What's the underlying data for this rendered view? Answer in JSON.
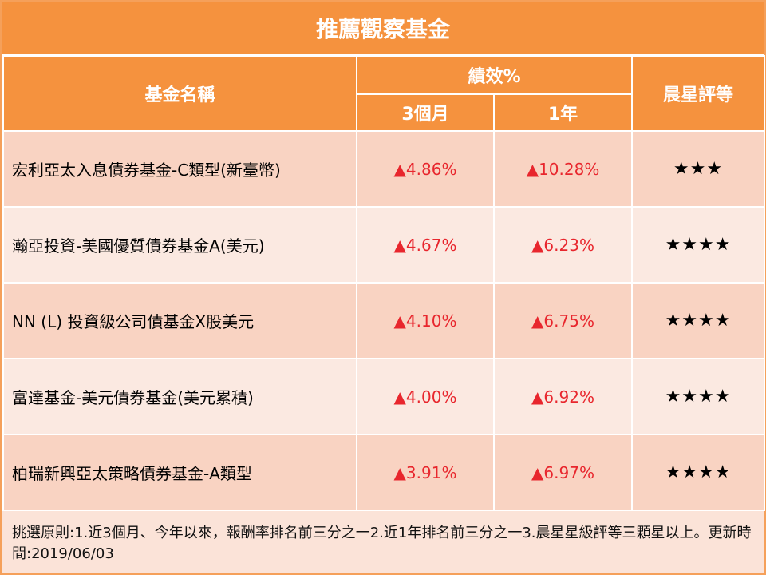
{
  "title": "推薦觀察基金",
  "headers": {
    "fund_name": "基金名稱",
    "performance": "績效%",
    "period_3m": "3個月",
    "period_1y": "1年",
    "rating": "晨星評等"
  },
  "funds": [
    {
      "name": "宏利亞太入息債券基金-C類型(新臺幣)",
      "r3m": "▲4.86%",
      "r1y": "▲10.28%",
      "stars": "★★★"
    },
    {
      "name": "瀚亞投資-美國優質債券基金A(美元)",
      "r3m": "▲4.67%",
      "r1y": "▲6.23%",
      "stars": "★★★★"
    },
    {
      "name": "NN (L) 投資級公司債基金X股美元",
      "r3m": "▲4.10%",
      "r1y": "▲6.75%",
      "stars": "★★★★"
    },
    {
      "name": "富達基金-美元債券基金(美元累積)",
      "r3m": "▲4.00%",
      "r1y": "▲6.92%",
      "stars": "★★★★"
    },
    {
      "name": "柏瑞新興亞太策略債券基金-A類型",
      "r3m": "▲3.91%",
      "r1y": "▲6.97%",
      "stars": "★★★★"
    }
  ],
  "footnote": "挑選原則:1.近3個月、今年以來，報酬率排名前三分之一2.近1年排名前三分之一3.晨星星級評等三顆星以上。更新時間:2019/06/03",
  "colors": {
    "header": "#f5923e",
    "row_dark": "#f9d3c2",
    "row_light": "#fbe9e1",
    "up": "#e8262d"
  }
}
